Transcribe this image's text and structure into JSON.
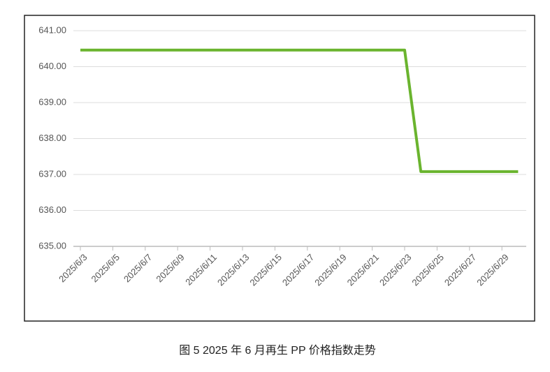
{
  "chart_data": {
    "type": "line",
    "caption": "图 5  2025 年 6 月再生 PP 价格指数走势",
    "categories": [
      "2025/6/3",
      null,
      "2025/6/5",
      null,
      "2025/6/7",
      null,
      "2025/6/9",
      null,
      "2025/6/11",
      null,
      "2025/6/13",
      null,
      "2025/6/15",
      null,
      "2025/6/17",
      null,
      "2025/6/19",
      null,
      "2025/6/21",
      null,
      "2025/6/23",
      null,
      "2025/6/25",
      null,
      "2025/6/27",
      null,
      "2025/6/29",
      null
    ],
    "values": [
      640.46,
      640.46,
      640.46,
      640.46,
      640.46,
      640.46,
      640.46,
      640.46,
      640.46,
      640.46,
      640.46,
      640.46,
      640.46,
      640.46,
      640.46,
      640.46,
      640.46,
      640.46,
      640.46,
      640.46,
      640.46,
      637.08,
      637.08,
      637.08,
      637.08,
      637.08,
      637.08,
      637.08
    ],
    "color": "#6ab42e",
    "ylim": [
      635,
      641
    ],
    "yticks": [
      {
        "value": 635,
        "label": "635.00"
      },
      {
        "value": 636,
        "label": "636.00"
      },
      {
        "value": 637,
        "label": "637.00"
      },
      {
        "value": 638,
        "label": "638.00"
      },
      {
        "value": 639,
        "label": "639.00"
      },
      {
        "value": 640,
        "label": "640.00"
      },
      {
        "value": 641,
        "label": "641.00"
      }
    ],
    "grid": true
  }
}
